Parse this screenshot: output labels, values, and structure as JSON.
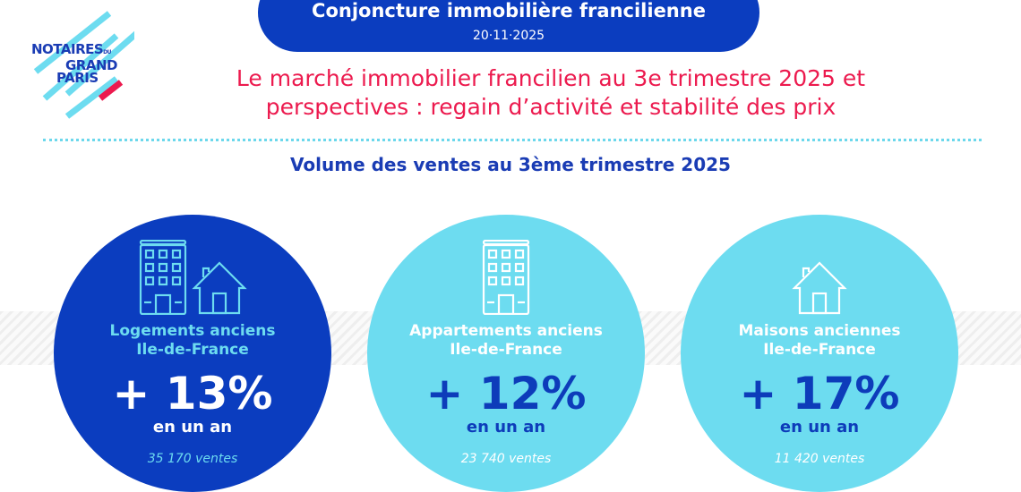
{
  "logo": {
    "line1": "NOTAIRES",
    "du": "DU",
    "line2": "GRAND",
    "line3": "PARIS"
  },
  "header": {
    "title": "Conjoncture immobilière francilienne",
    "date": "20·11·2025"
  },
  "headline": {
    "line1": "Le marché immobilier francilien au 3e trimestre 2025 et",
    "line2": "perspectives : regain d’activité et stabilité des prix"
  },
  "subtitle": "Volume des ventes au 3ème trimestre 2025",
  "colors": {
    "dark_blue": "#0b3dbf",
    "light_blue": "#6ddcf0",
    "red": "#ec1a4e"
  },
  "cards": [
    {
      "label1": "Logements anciens",
      "label2": "Ile-de-France",
      "percent": "+ 13%",
      "period": "en un an",
      "count": "35 170 ventes",
      "icons": [
        "building-icon",
        "house-icon"
      ]
    },
    {
      "label1": "Appartements anciens",
      "label2": "Ile-de-France",
      "percent": "+ 12%",
      "period": "en un an",
      "count": "23 740 ventes",
      "icons": [
        "building-icon"
      ]
    },
    {
      "label1": "Maisons anciennes",
      "label2": "Ile-de-France",
      "percent": "+ 17%",
      "period": "en un an",
      "count": "11 420 ventes",
      "icons": [
        "house-icon"
      ]
    }
  ]
}
